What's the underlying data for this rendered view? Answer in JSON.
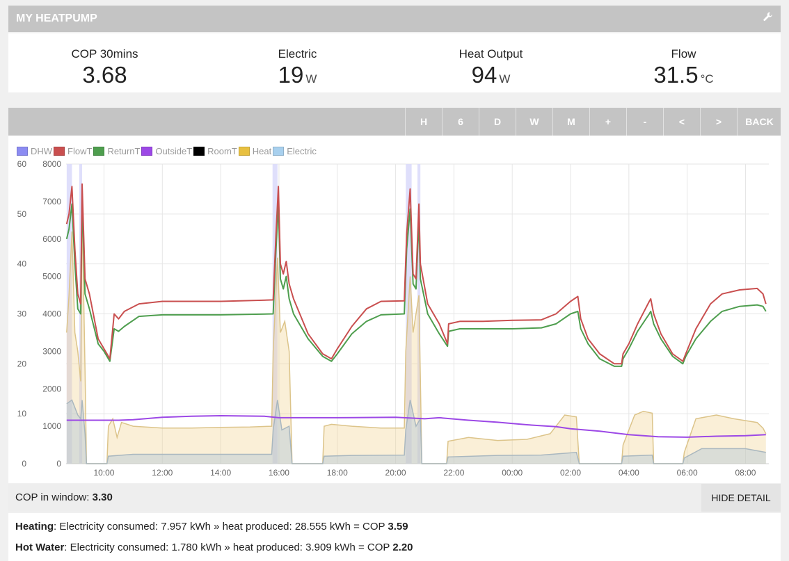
{
  "header": {
    "title": "MY HEATPUMP"
  },
  "stats": [
    {
      "label": "COP 30mins",
      "value": "3.68",
      "unit": ""
    },
    {
      "label": "Electric",
      "value": "19",
      "unit": "W"
    },
    {
      "label": "Heat Output",
      "value": "94",
      "unit": "W"
    },
    {
      "label": "Flow",
      "value": "31.5",
      "unit": "°C"
    }
  ],
  "toolbar": {
    "buttons": [
      "H",
      "6",
      "D",
      "W",
      "M",
      "+",
      "-",
      "<",
      ">",
      "BACK"
    ]
  },
  "chart_data": {
    "type": "line",
    "legend": [
      {
        "name": "DHW",
        "color": "#8c8cf2"
      },
      {
        "name": "FlowT",
        "color": "#c94f4f"
      },
      {
        "name": "ReturnT",
        "color": "#4e9e4e"
      },
      {
        "name": "OutsideT",
        "color": "#9c48e6"
      },
      {
        "name": "RoomT",
        "color": "#000000"
      },
      {
        "name": "Heat",
        "color": "#e8c040"
      },
      {
        "name": "Electric",
        "color": "#a8d0ee"
      }
    ],
    "y_left": {
      "range": [
        0,
        60
      ],
      "ticks": [
        "0",
        "10",
        "20",
        "30",
        "40",
        "50",
        "60"
      ]
    },
    "y_right": {
      "range": [
        0,
        8000
      ],
      "ticks": [
        "0",
        "1000",
        "2000",
        "3000",
        "4000",
        "5000",
        "6000",
        "7000",
        "8000"
      ]
    },
    "x_range_hours": [
      8.7,
      32.8
    ],
    "x_ticks": [
      {
        "h": 10,
        "label": "10:00"
      },
      {
        "h": 12,
        "label": "12:00"
      },
      {
        "h": 14,
        "label": "14:00"
      },
      {
        "h": 16,
        "label": "16:00"
      },
      {
        "h": 18,
        "label": "18:00"
      },
      {
        "h": 20,
        "label": "20:00"
      },
      {
        "h": 22,
        "label": "22:00"
      },
      {
        "h": 24,
        "label": "00:00"
      },
      {
        "h": 26,
        "label": "02:00"
      },
      {
        "h": 28,
        "label": "04:00"
      },
      {
        "h": 30,
        "label": "06:00"
      },
      {
        "h": 32,
        "label": "08:00"
      }
    ],
    "dhw_periods": [
      [
        8.72,
        8.9
      ],
      [
        9.15,
        9.25
      ],
      [
        15.78,
        15.95
      ],
      [
        20.35,
        20.55
      ],
      [
        20.75,
        20.85
      ]
    ],
    "series": [
      {
        "name": "FlowT",
        "axis": "left",
        "points": [
          [
            8.72,
            48
          ],
          [
            8.8,
            50
          ],
          [
            8.9,
            55.5
          ],
          [
            9.0,
            43
          ],
          [
            9.1,
            34
          ],
          [
            9.2,
            32
          ],
          [
            9.25,
            56
          ],
          [
            9.35,
            37
          ],
          [
            9.5,
            34
          ],
          [
            9.8,
            25
          ],
          [
            10.0,
            23
          ],
          [
            10.2,
            21
          ],
          [
            10.35,
            30
          ],
          [
            10.5,
            29
          ],
          [
            10.7,
            30.5
          ],
          [
            11.2,
            32
          ],
          [
            12.0,
            32.5
          ],
          [
            14.0,
            32.5
          ],
          [
            15.8,
            32.8
          ],
          [
            15.9,
            46
          ],
          [
            15.98,
            55.5
          ],
          [
            16.05,
            40
          ],
          [
            16.15,
            38
          ],
          [
            16.25,
            40.5
          ],
          [
            16.35,
            36
          ],
          [
            16.5,
            33
          ],
          [
            17.0,
            26
          ],
          [
            17.5,
            22
          ],
          [
            17.8,
            21
          ],
          [
            18.0,
            23
          ],
          [
            18.5,
            27.5
          ],
          [
            19.0,
            31
          ],
          [
            19.5,
            32.5
          ],
          [
            20.3,
            32.6
          ],
          [
            20.38,
            46
          ],
          [
            20.5,
            55
          ],
          [
            20.6,
            38
          ],
          [
            20.7,
            37
          ],
          [
            20.8,
            52
          ],
          [
            20.85,
            40
          ],
          [
            21.1,
            32
          ],
          [
            21.5,
            28
          ],
          [
            21.78,
            24
          ],
          [
            21.82,
            28
          ],
          [
            22.2,
            28.5
          ],
          [
            23.0,
            28.5
          ],
          [
            24.0,
            28.7
          ],
          [
            25.0,
            28.8
          ],
          [
            25.5,
            30
          ],
          [
            26.0,
            32.5
          ],
          [
            26.25,
            33.5
          ],
          [
            26.35,
            29
          ],
          [
            26.6,
            25
          ],
          [
            27.0,
            22
          ],
          [
            27.5,
            20
          ],
          [
            27.75,
            20
          ],
          [
            27.8,
            22
          ],
          [
            28.0,
            24
          ],
          [
            28.3,
            28
          ],
          [
            28.7,
            32.5
          ],
          [
            28.75,
            33
          ],
          [
            28.85,
            30
          ],
          [
            29.1,
            26
          ],
          [
            29.5,
            22
          ],
          [
            29.85,
            20.5
          ],
          [
            29.95,
            22
          ],
          [
            30.3,
            27
          ],
          [
            30.8,
            32
          ],
          [
            31.2,
            34
          ],
          [
            31.8,
            34.8
          ],
          [
            32.4,
            35.1
          ],
          [
            32.6,
            34
          ],
          [
            32.7,
            32
          ]
        ]
      },
      {
        "name": "ReturnT",
        "axis": "left",
        "points": [
          [
            8.72,
            45
          ],
          [
            8.8,
            47
          ],
          [
            8.9,
            52
          ],
          [
            9.0,
            40
          ],
          [
            9.1,
            31
          ],
          [
            9.2,
            30
          ],
          [
            9.25,
            53
          ],
          [
            9.35,
            34
          ],
          [
            9.5,
            31
          ],
          [
            9.8,
            24
          ],
          [
            10.0,
            22.5
          ],
          [
            10.2,
            20.5
          ],
          [
            10.35,
            27
          ],
          [
            10.5,
            26.5
          ],
          [
            10.7,
            27.5
          ],
          [
            11.2,
            29.5
          ],
          [
            12.0,
            29.8
          ],
          [
            14.0,
            29.8
          ],
          [
            15.8,
            30
          ],
          [
            15.9,
            43
          ],
          [
            15.98,
            52
          ],
          [
            16.05,
            37
          ],
          [
            16.15,
            35
          ],
          [
            16.25,
            37.5
          ],
          [
            16.35,
            33
          ],
          [
            16.5,
            30
          ],
          [
            17.0,
            25
          ],
          [
            17.5,
            21.5
          ],
          [
            17.8,
            20.5
          ],
          [
            18.0,
            22
          ],
          [
            18.5,
            26
          ],
          [
            19.0,
            28.5
          ],
          [
            19.5,
            29.8
          ],
          [
            20.3,
            30
          ],
          [
            20.38,
            43
          ],
          [
            20.5,
            51
          ],
          [
            20.6,
            36
          ],
          [
            20.7,
            35
          ],
          [
            20.8,
            49
          ],
          [
            20.85,
            37
          ],
          [
            21.1,
            30
          ],
          [
            21.5,
            26
          ],
          [
            21.78,
            23.5
          ],
          [
            21.82,
            26.5
          ],
          [
            22.2,
            27
          ],
          [
            23.0,
            27
          ],
          [
            24.0,
            27
          ],
          [
            25.0,
            27.2
          ],
          [
            25.5,
            28
          ],
          [
            26.0,
            30
          ],
          [
            26.25,
            30.5
          ],
          [
            26.35,
            27
          ],
          [
            26.6,
            24
          ],
          [
            27.0,
            21
          ],
          [
            27.5,
            19.5
          ],
          [
            27.75,
            19.5
          ],
          [
            27.8,
            21
          ],
          [
            28.0,
            23
          ],
          [
            28.3,
            26.5
          ],
          [
            28.7,
            30
          ],
          [
            28.75,
            30.5
          ],
          [
            28.85,
            28
          ],
          [
            29.1,
            25
          ],
          [
            29.5,
            21.5
          ],
          [
            29.85,
            20
          ],
          [
            29.95,
            21.5
          ],
          [
            30.3,
            25
          ],
          [
            30.8,
            28.5
          ],
          [
            31.2,
            30.5
          ],
          [
            31.8,
            31.5
          ],
          [
            32.4,
            31.8
          ],
          [
            32.6,
            31.5
          ],
          [
            32.7,
            30.5
          ]
        ]
      },
      {
        "name": "OutsideT",
        "axis": "left",
        "points": [
          [
            8.72,
            8.7
          ],
          [
            10.5,
            8.7
          ],
          [
            11.0,
            8.8
          ],
          [
            12.0,
            9.3
          ],
          [
            13.0,
            9.5
          ],
          [
            14.0,
            9.6
          ],
          [
            15.5,
            9.5
          ],
          [
            16.0,
            9.2
          ],
          [
            17.0,
            9.2
          ],
          [
            18.0,
            9.2
          ],
          [
            20.0,
            9.3
          ],
          [
            21.0,
            9.0
          ],
          [
            21.5,
            9.2
          ],
          [
            22.5,
            8.7
          ],
          [
            23.5,
            8.3
          ],
          [
            24.5,
            7.8
          ],
          [
            25.5,
            7.4
          ],
          [
            26.0,
            7.0
          ],
          [
            27.0,
            6.5
          ],
          [
            28.0,
            5.8
          ],
          [
            29.0,
            5.4
          ],
          [
            30.0,
            5.3
          ],
          [
            31.0,
            5.5
          ],
          [
            32.0,
            5.6
          ],
          [
            32.7,
            5.8
          ]
        ]
      },
      {
        "name": "Heat",
        "axis": "right",
        "points": [
          [
            8.72,
            3500
          ],
          [
            8.8,
            4500
          ],
          [
            8.9,
            6200
          ],
          [
            9.0,
            3500
          ],
          [
            9.1,
            3000
          ],
          [
            9.2,
            2200
          ],
          [
            9.25,
            6800
          ],
          [
            9.35,
            2500
          ],
          [
            9.4,
            0
          ],
          [
            10.1,
            0
          ],
          [
            10.15,
            1000
          ],
          [
            10.3,
            1200
          ],
          [
            10.45,
            700
          ],
          [
            10.6,
            1100
          ],
          [
            11.0,
            1000
          ],
          [
            12.0,
            950
          ],
          [
            13.0,
            950
          ],
          [
            14.0,
            970
          ],
          [
            15.0,
            980
          ],
          [
            15.75,
            1000
          ],
          [
            15.8,
            3000
          ],
          [
            15.95,
            5500
          ],
          [
            16.05,
            3500
          ],
          [
            16.2,
            3800
          ],
          [
            16.35,
            3000
          ],
          [
            16.45,
            0
          ],
          [
            17.5,
            0
          ],
          [
            17.55,
            1000
          ],
          [
            17.8,
            1050
          ],
          [
            18.5,
            1000
          ],
          [
            19.5,
            950
          ],
          [
            20.3,
            950
          ],
          [
            20.35,
            3000
          ],
          [
            20.5,
            5000
          ],
          [
            20.6,
            3500
          ],
          [
            20.8,
            4500
          ],
          [
            20.9,
            0
          ],
          [
            21.75,
            0
          ],
          [
            21.8,
            600
          ],
          [
            22.5,
            700
          ],
          [
            23.5,
            620
          ],
          [
            24.5,
            650
          ],
          [
            25.3,
            800
          ],
          [
            25.8,
            1300
          ],
          [
            26.2,
            1250
          ],
          [
            26.3,
            0
          ],
          [
            27.75,
            0
          ],
          [
            27.8,
            500
          ],
          [
            28.2,
            1300
          ],
          [
            28.5,
            1400
          ],
          [
            28.8,
            1350
          ],
          [
            28.85,
            0
          ],
          [
            29.85,
            0
          ],
          [
            29.9,
            300
          ],
          [
            30.3,
            1200
          ],
          [
            31.0,
            1300
          ],
          [
            31.6,
            1200
          ],
          [
            32.4,
            1100
          ],
          [
            32.6,
            950
          ],
          [
            32.7,
            800
          ]
        ]
      },
      {
        "name": "Electric",
        "axis": "right",
        "points": [
          [
            8.72,
            1600
          ],
          [
            8.9,
            1700
          ],
          [
            9.1,
            1300
          ],
          [
            9.2,
            1200
          ],
          [
            9.25,
            1700
          ],
          [
            9.35,
            800
          ],
          [
            9.4,
            0
          ],
          [
            10.1,
            0
          ],
          [
            10.15,
            200
          ],
          [
            11.0,
            250
          ],
          [
            13.0,
            250
          ],
          [
            15.75,
            250
          ],
          [
            15.8,
            900
          ],
          [
            15.95,
            1700
          ],
          [
            16.1,
            900
          ],
          [
            16.35,
            1000
          ],
          [
            16.45,
            0
          ],
          [
            17.5,
            0
          ],
          [
            17.55,
            200
          ],
          [
            18.5,
            220
          ],
          [
            20.3,
            230
          ],
          [
            20.35,
            900
          ],
          [
            20.5,
            1700
          ],
          [
            20.7,
            1000
          ],
          [
            20.85,
            1200
          ],
          [
            20.9,
            0
          ],
          [
            21.75,
            0
          ],
          [
            21.8,
            180
          ],
          [
            23.5,
            220
          ],
          [
            25.0,
            230
          ],
          [
            26.2,
            300
          ],
          [
            26.3,
            0
          ],
          [
            27.75,
            0
          ],
          [
            27.8,
            200
          ],
          [
            28.8,
            230
          ],
          [
            28.85,
            0
          ],
          [
            29.85,
            0
          ],
          [
            29.9,
            150
          ],
          [
            30.5,
            400
          ],
          [
            32.0,
            400
          ],
          [
            32.7,
            300
          ]
        ]
      }
    ]
  },
  "cop_window": {
    "label": "COP in window:",
    "value": "3.30"
  },
  "hide_detail_label": "HIDE DETAIL",
  "detail": {
    "heating": {
      "label": "Heating",
      "text": ": Electricity consumed: 7.957 kWh » heat produced: 28.555 kWh = COP ",
      "cop": "3.59"
    },
    "hot_water": {
      "label": "Hot Water",
      "text": ": Electricity consumed: 1.780 kWh » heat produced: 3.909 kWh = COP ",
      "cop": "2.20"
    }
  }
}
